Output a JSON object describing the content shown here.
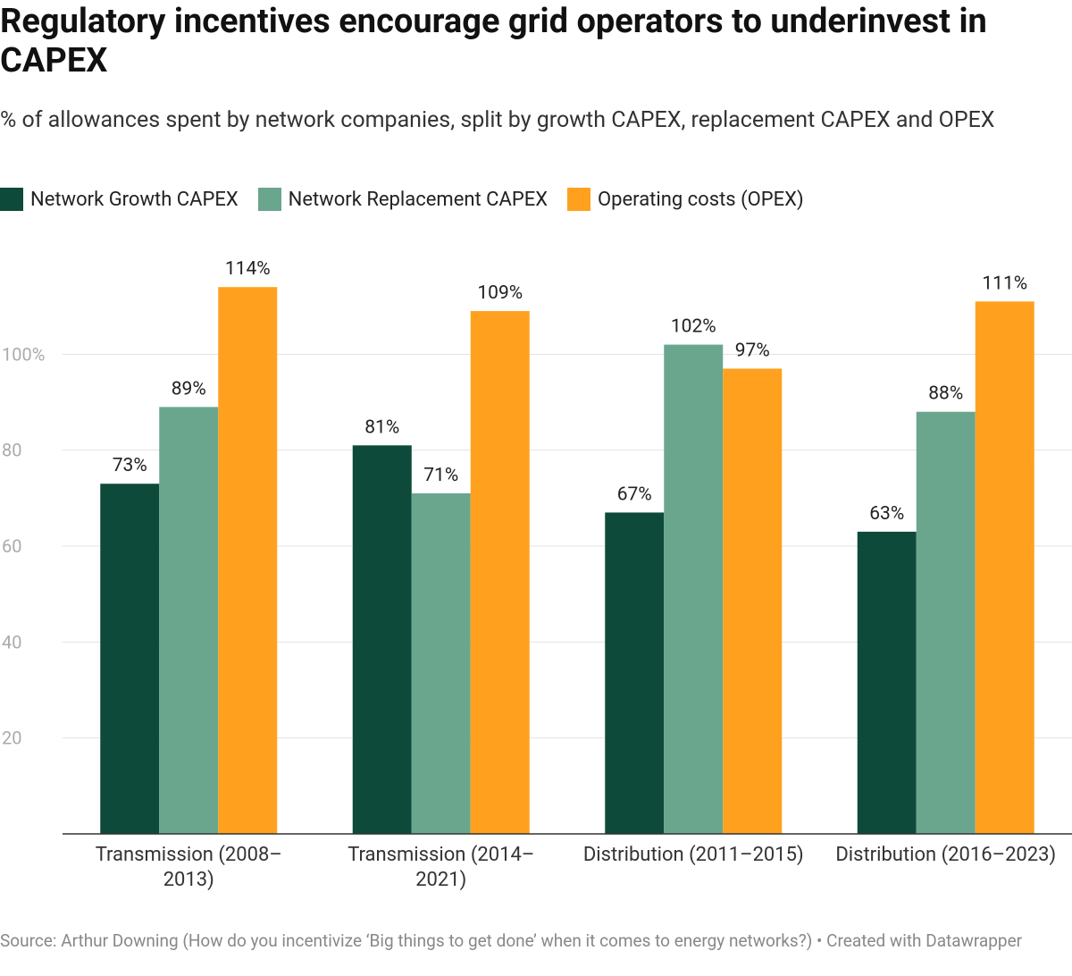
{
  "chart_data": {
    "type": "bar",
    "title": "Regulatory incentives encourage grid operators to underinvest in CAPEX",
    "subtitle": "% of allowances spent by network companies, split by growth CAPEX, replacement CAPEX and OPEX",
    "categories": [
      "Transmission (2008–2013)",
      "Transmission (2014–2021)",
      "Distribution (2011–2015)",
      "Distribution (2016–2023)"
    ],
    "series": [
      {
        "name": "Network Growth CAPEX",
        "color": "#0d4a3a",
        "values": [
          73,
          81,
          67,
          63
        ],
        "value_labels": [
          "73%",
          "81%",
          "67%",
          "63%"
        ]
      },
      {
        "name": "Network Replacement CAPEX",
        "color": "#6aa68e",
        "values": [
          89,
          71,
          102,
          88
        ],
        "value_labels": [
          "89%",
          "71%",
          "102%",
          "88%"
        ]
      },
      {
        "name": "Operating costs (OPEX)",
        "color": "#ffa11f",
        "values": [
          114,
          109,
          97,
          111
        ],
        "value_labels": [
          "114%",
          "109%",
          "97%",
          "111%"
        ]
      }
    ],
    "ylim": [
      0,
      120
    ],
    "yticks": [
      20,
      40,
      60,
      80,
      {
        "value": 100,
        "label": "100%"
      }
    ],
    "grid": true,
    "source": "Source: Arthur Downing (How do you incentivize ‘Big things to get done’ when it comes to energy networks?) • Created with Datawrapper"
  }
}
